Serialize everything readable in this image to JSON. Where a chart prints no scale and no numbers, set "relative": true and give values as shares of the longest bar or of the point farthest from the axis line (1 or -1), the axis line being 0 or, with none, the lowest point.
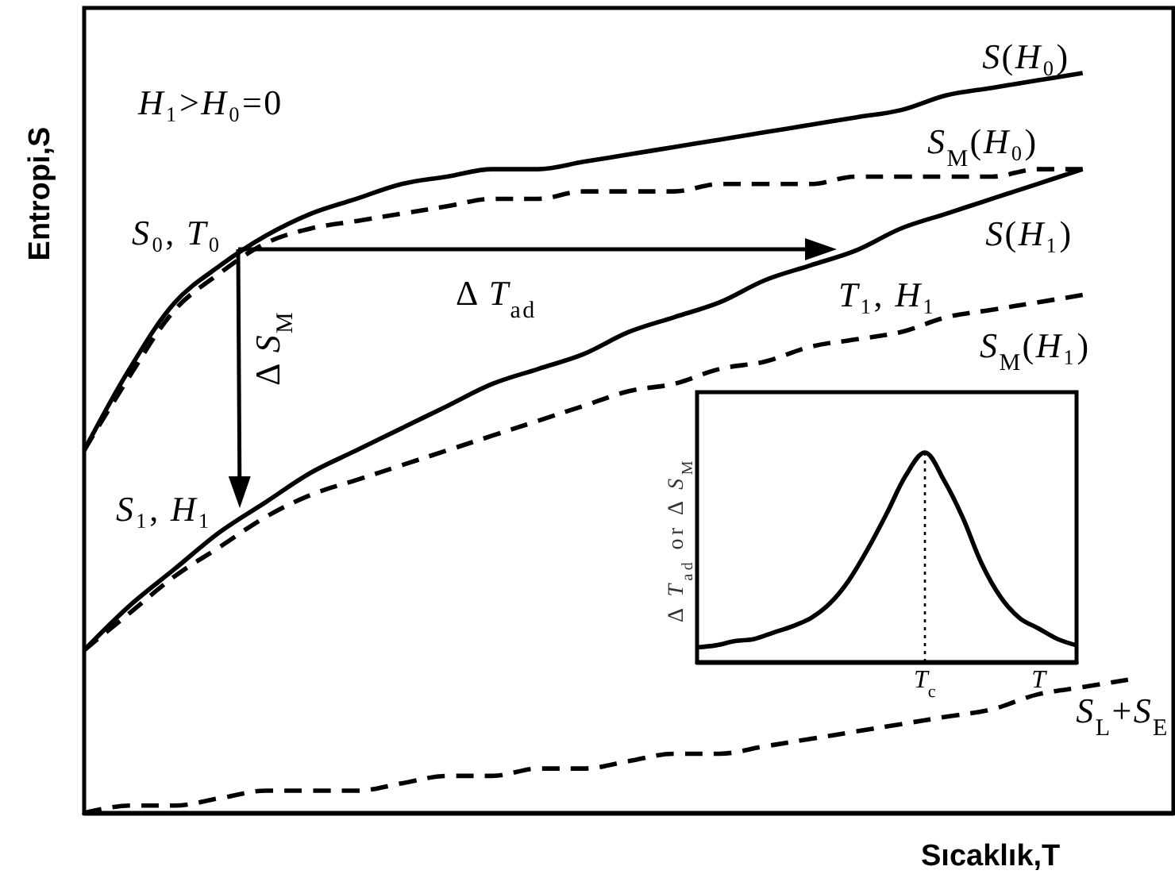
{
  "chart_data": [
    {
      "type": "line",
      "xlabel": "Sıcaklık,T",
      "ylabel": "Entropi,S",
      "relative": true,
      "marker": "none",
      "line_style": "solid",
      "categories": [
        null,
        null,
        null,
        null,
        null,
        null,
        null,
        null,
        null,
        null,
        null,
        null,
        null,
        null,
        null,
        null,
        null,
        null,
        null,
        null,
        null,
        null,
        null,
        null,
        null
      ],
      "series": [
        {
          "name": "S(H₀)",
          "color": "#000000",
          "values": [
            0.49,
            0.6,
            0.69,
            0.74,
            0.78,
            0.81,
            0.83,
            0.85,
            0.86,
            0.87,
            0.87,
            0.88,
            0.89,
            0.9,
            0.91,
            0.92,
            0.93,
            0.94,
            0.95,
            0.97,
            0.98,
            0.99,
            1,
            null,
            null
          ]
        },
        {
          "name": "S$_{M}$(H₀)",
          "color": "#000000",
          "line_style": "dashed",
          "values": [
            0.49,
            0.59,
            0.68,
            0.73,
            0.77,
            0.79,
            0.8,
            0.81,
            0.82,
            0.83,
            0.83,
            0.84,
            0.84,
            0.84,
            0.85,
            0.85,
            0.85,
            0.86,
            0.86,
            0.86,
            0.86,
            0.87,
            0.87,
            null,
            null
          ]
        },
        {
          "name": "S(H₁)",
          "color": "#000000",
          "values": [
            0.22,
            0.28,
            0.33,
            0.38,
            0.42,
            0.46,
            0.49,
            0.52,
            0.55,
            0.58,
            0.6,
            0.62,
            0.65,
            0.67,
            0.69,
            0.72,
            0.74,
            0.76,
            0.79,
            0.81,
            0.83,
            0.85,
            0.87,
            null,
            null
          ]
        },
        {
          "name": "S$_{M}$(H₁)",
          "color": "#000000",
          "line_style": "dashed",
          "values": [
            0.22,
            0.27,
            0.32,
            0.36,
            0.4,
            0.43,
            0.45,
            0.47,
            0.49,
            0.51,
            0.53,
            0.55,
            0.57,
            0.58,
            0.6,
            0.61,
            0.63,
            0.64,
            0.65,
            0.67,
            0.68,
            0.69,
            0.7,
            null,
            null
          ]
        },
        {
          "name": "S$_{L}$+S$_{E}$",
          "color": "#000000",
          "line_style": "dashed",
          "values": [
            0,
            0.01,
            0.01,
            0.02,
            0.03,
            0.03,
            0.03,
            0.04,
            0.05,
            0.05,
            0.06,
            0.06,
            0.07,
            0.08,
            0.08,
            0.09,
            0.1,
            0.11,
            0.12,
            0.13,
            0.14,
            0.16,
            0.17,
            0.18,
            null
          ]
        }
      ],
      "annotations": [
        "H₁>H₀=0",
        "S₀, T₀",
        "Δ T$_{ad}$",
        "Δ S$_{M}$",
        "S₁, H₁",
        "T₁, H₁"
      ]
    },
    {
      "type": "line",
      "ylabel": "Δ T$_{ad}$ or Δ S$_{M}$",
      "relative": true,
      "marker": "none",
      "line_style": "solid",
      "categories": [
        null,
        null,
        null,
        null,
        null,
        null,
        null,
        null,
        null,
        null,
        null,
        null,
        "T$_{c}$",
        null,
        null,
        null,
        null,
        null,
        "T",
        null,
        null
      ],
      "series": [
        {
          "color": "#000000",
          "values": [
            0.07,
            0.08,
            0.1,
            0.11,
            0.14,
            0.17,
            0.21,
            0.28,
            0.39,
            0.54,
            0.71,
            0.89,
            1,
            0.87,
            0.69,
            0.47,
            0.31,
            0.21,
            0.16,
            0.11,
            0.08
          ]
        }
      ],
      "ref_lines": [
        {
          "axis": "x",
          "value": "T$_{c}$",
          "line_style": "dotted",
          "color": "#000000"
        }
      ]
    }
  ]
}
